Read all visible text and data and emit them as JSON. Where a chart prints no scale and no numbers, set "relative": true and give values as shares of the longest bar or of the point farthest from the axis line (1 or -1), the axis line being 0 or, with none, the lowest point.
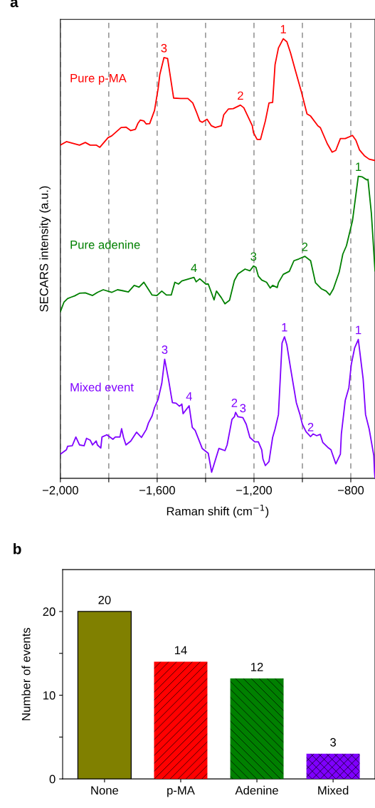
{
  "chart_data": [
    {
      "type": "line",
      "relative": true,
      "xlabel": "Raman shift (cm$^{−1}$)",
      "ylabel": "SECARS intensity (a.u.)",
      "xlim": [
        -2000,
        -700
      ],
      "xticks": [
        {
          "value": -2000,
          "label": "−2,000"
        },
        {
          "value": -1800,
          "label": null
        },
        {
          "value": -1600,
          "label": "−1,600"
        },
        {
          "value": -1400,
          "label": null
        },
        {
          "value": -1200,
          "label": "−1,200"
        },
        {
          "value": -1000,
          "label": null
        },
        {
          "value": -800,
          "label": "−800"
        }
      ],
      "grid": "x",
      "legend": false,
      "line_style": "solid",
      "marker": "none",
      "series": [
        {
          "name": "Pure p-MA",
          "color": "#ff0000",
          "x": [
            -2000,
            -1975,
            -1921,
            -1897,
            -1877,
            -1852,
            -1837,
            -1803,
            -1788,
            -1749,
            -1729,
            -1709,
            -1690,
            -1680,
            -1670,
            -1655,
            -1645,
            -1631,
            -1611,
            -1596,
            -1589,
            -1572,
            -1557,
            -1532,
            -1503,
            -1473,
            -1453,
            -1439,
            -1424,
            -1414,
            -1394,
            -1376,
            -1360,
            -1335,
            -1325,
            -1306,
            -1286,
            -1256,
            -1242,
            -1207,
            -1202,
            -1187,
            -1173,
            -1153,
            -1138,
            -1123,
            -1113,
            -1099,
            -1079,
            -1064,
            -1049,
            -1030,
            -1005,
            -981,
            -966,
            -936,
            -926,
            -897,
            -877,
            -862,
            -843,
            -823,
            -793,
            -779,
            -764,
            -744,
            -724,
            -700
          ],
          "values": [
            0.758,
            0.766,
            0.758,
            0.764,
            0.758,
            0.758,
            0.753,
            0.775,
            0.779,
            0.798,
            0.799,
            0.791,
            0.794,
            0.807,
            0.815,
            0.813,
            0.806,
            0.807,
            0.837,
            0.887,
            0.919,
            0.957,
            0.955,
            0.865,
            0.864,
            0.864,
            0.854,
            0.835,
            0.813,
            0.81,
            0.817,
            0.802,
            0.798,
            0.802,
            0.827,
            0.84,
            0.841,
            0.849,
            0.843,
            0.802,
            0.786,
            0.771,
            0.771,
            0.813,
            0.854,
            0.855,
            0.941,
            0.979,
            1.0,
            0.993,
            0.968,
            0.93,
            0.881,
            0.829,
            0.824,
            0.802,
            0.798,
            0.761,
            0.742,
            0.746,
            0.773,
            0.773,
            0.78,
            0.769,
            0.747,
            0.734,
            0.726,
            0.723
          ]
        },
        {
          "name": "Pure adenine",
          "color": "#008000",
          "x": [
            -2000,
            -1985,
            -1970,
            -1956,
            -1941,
            -1921,
            -1897,
            -1867,
            -1847,
            -1823,
            -1788,
            -1764,
            -1744,
            -1719,
            -1695,
            -1675,
            -1655,
            -1621,
            -1601,
            -1581,
            -1562,
            -1542,
            -1527,
            -1512,
            -1498,
            -1473,
            -1448,
            -1439,
            -1424,
            -1399,
            -1389,
            -1365,
            -1355,
            -1335,
            -1320,
            -1301,
            -1281,
            -1266,
            -1237,
            -1217,
            -1202,
            -1192,
            -1182,
            -1168,
            -1148,
            -1133,
            -1123,
            -1104,
            -1099,
            -1079,
            -1054,
            -1035,
            -1015,
            -990,
            -966,
            -946,
            -921,
            -902,
            -887,
            -872,
            -848,
            -833,
            -818,
            -793,
            -769,
            -754,
            -734,
            -729,
            -715,
            -700
          ],
          "values": [
            0.379,
            0.401,
            0.409,
            0.412,
            0.415,
            0.421,
            0.422,
            0.416,
            0.423,
            0.429,
            0.423,
            0.429,
            0.427,
            0.424,
            0.439,
            0.435,
            0.446,
            0.417,
            0.416,
            0.426,
            0.417,
            0.417,
            0.446,
            0.442,
            0.449,
            0.453,
            0.457,
            0.447,
            0.454,
            0.442,
            0.442,
            0.406,
            0.426,
            0.411,
            0.397,
            0.405,
            0.45,
            0.465,
            0.476,
            0.472,
            0.483,
            0.48,
            0.46,
            0.451,
            0.446,
            0.433,
            0.439,
            0.434,
            0.445,
            0.464,
            0.471,
            0.495,
            0.499,
            0.505,
            0.495,
            0.445,
            0.431,
            0.426,
            0.417,
            0.431,
            0.469,
            0.51,
            0.529,
            0.586,
            0.687,
            0.686,
            0.679,
            0.68,
            0.603,
            0.472
          ]
        },
        {
          "name": "Mixed event",
          "color": "#7f00ff",
          "x": [
            -2000,
            -1975,
            -1970,
            -1951,
            -1936,
            -1921,
            -1902,
            -1892,
            -1877,
            -1867,
            -1852,
            -1847,
            -1833,
            -1828,
            -1808,
            -1793,
            -1783,
            -1773,
            -1754,
            -1747,
            -1739,
            -1729,
            -1709,
            -1685,
            -1665,
            -1645,
            -1636,
            -1621,
            -1611,
            -1596,
            -1581,
            -1569,
            -1552,
            -1542,
            -1537,
            -1522,
            -1508,
            -1498,
            -1493,
            -1468,
            -1455,
            -1443,
            -1414,
            -1389,
            -1375,
            -1345,
            -1320,
            -1311,
            -1291,
            -1281,
            -1276,
            -1266,
            -1246,
            -1232,
            -1217,
            -1197,
            -1182,
            -1168,
            -1163,
            -1153,
            -1138,
            -1123,
            -1113,
            -1099,
            -1084,
            -1074,
            -1064,
            -1049,
            -1035,
            -1025,
            -1010,
            -1000,
            -985,
            -966,
            -956,
            -941,
            -926,
            -916,
            -892,
            -882,
            -862,
            -843,
            -839,
            -823,
            -808,
            -798,
            -784,
            -769,
            -749,
            -739,
            -724,
            -705,
            -702,
            -700
          ],
          "values": [
            0.055,
            0.065,
            0.073,
            0.074,
            0.094,
            0.076,
            0.074,
            0.091,
            0.087,
            0.076,
            0.085,
            0.076,
            0.069,
            0.094,
            0.099,
            0.093,
            0.089,
            0.094,
            0.094,
            0.113,
            0.093,
            0.076,
            0.085,
            0.105,
            0.093,
            0.111,
            0.126,
            0.142,
            0.161,
            0.18,
            0.216,
            0.271,
            0.221,
            0.188,
            0.172,
            0.171,
            0.164,
            0.169,
            0.147,
            0.165,
            0.116,
            0.109,
            0.068,
            0.057,
            0.014,
            0.068,
            0.063,
            0.076,
            0.134,
            0.14,
            0.15,
            0.14,
            0.138,
            0.123,
            0.093,
            0.083,
            0.083,
            0.065,
            0.044,
            0.029,
            0.038,
            0.093,
            0.112,
            0.145,
            0.308,
            0.322,
            0.303,
            0.251,
            0.205,
            0.172,
            0.145,
            0.123,
            0.106,
            0.095,
            0.101,
            0.097,
            0.1,
            0.082,
            0.069,
            0.065,
            0.033,
            0.055,
            0.101,
            0.177,
            0.206,
            0.259,
            0.297,
            0.316,
            0.226,
            0.145,
            0.112,
            0.052,
            0.014,
            0.0
          ]
        }
      ],
      "annotations": [
        "a",
        {
          "text": "3",
          "x": -1572,
          "y": 0.957
        },
        {
          "text": "2",
          "x": -1256,
          "y": 0.849
        },
        {
          "text": "1",
          "x": -1079,
          "y": 1.0
        },
        {
          "text": "4",
          "x": -1448,
          "y": 0.457
        },
        {
          "text": "3",
          "x": -1202,
          "y": 0.483
        },
        {
          "text": "2",
          "x": -990,
          "y": 0.505
        },
        {
          "text": "1",
          "x": -769,
          "y": 0.687
        },
        {
          "text": "3",
          "x": -1569,
          "y": 0.271
        },
        {
          "text": "4",
          "x": -1468,
          "y": 0.165
        },
        {
          "text": "2",
          "x": -1281,
          "y": 0.15
        },
        {
          "text": "3",
          "x": -1246,
          "y": 0.138
        },
        {
          "text": "1",
          "x": -1074,
          "y": 0.322
        },
        {
          "text": "2",
          "x": -966,
          "y": 0.095
        },
        {
          "text": "1",
          "x": -769,
          "y": 0.316
        }
      ]
    },
    {
      "type": "bar",
      "ylabel": "Number of events",
      "categories": [
        "None",
        "p-MA",
        "Adenine",
        "Mixed"
      ],
      "values": [
        20,
        14,
        12,
        3
      ],
      "colors": [
        "#808000",
        "#ff0000",
        "#008000",
        "#7f00ff"
      ],
      "ylim": [
        0,
        25
      ],
      "yticks": [
        0,
        {
          "value": 5,
          "label": null
        },
        10,
        {
          "value": 15,
          "label": null
        },
        20
      ],
      "data_labels": true,
      "grid": false,
      "legend": false,
      "annotations": [
        "b"
      ]
    }
  ]
}
